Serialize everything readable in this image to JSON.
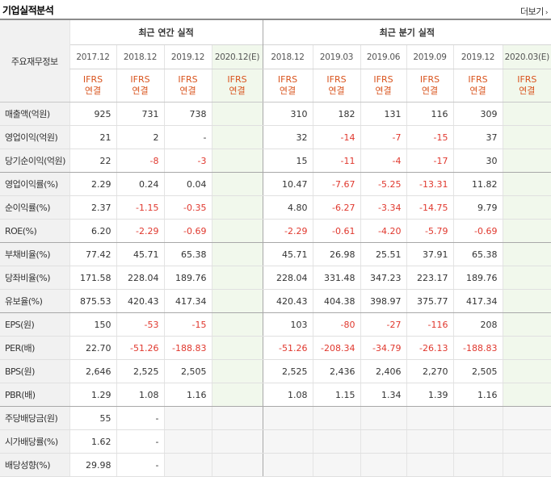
{
  "title": "기업실적분석",
  "more_label": "더보기",
  "header": {
    "label_col": "주요재무정보",
    "annual_group": "최근 연간 실적",
    "quarter_group": "최근 분기 실적",
    "annual_periods": [
      "2017.12",
      "2018.12",
      "2019.12",
      "2020.12(E)"
    ],
    "quarter_periods": [
      "2018.12",
      "2019.03",
      "2019.06",
      "2019.09",
      "2019.12",
      "2020.03(E)"
    ],
    "ifrs_line1": "IFRS",
    "ifrs_line2": "연결"
  },
  "rows": [
    {
      "label": "매출액(억원)",
      "annual": [
        "925",
        "731",
        "738",
        ""
      ],
      "quarter": [
        "310",
        "182",
        "131",
        "116",
        "309",
        ""
      ]
    },
    {
      "label": "영업이익(억원)",
      "annual": [
        "21",
        "2",
        "-",
        ""
      ],
      "quarter": [
        "32",
        "-14",
        "-7",
        "-15",
        "37",
        ""
      ]
    },
    {
      "label": "당기순이익(억원)",
      "annual": [
        "22",
        "-8",
        "-3",
        ""
      ],
      "quarter": [
        "15",
        "-11",
        "-4",
        "-17",
        "30",
        ""
      ]
    },
    {
      "label": "영업이익률(%)",
      "annual": [
        "2.29",
        "0.24",
        "0.04",
        ""
      ],
      "quarter": [
        "10.47",
        "-7.67",
        "-5.25",
        "-13.31",
        "11.82",
        ""
      ]
    },
    {
      "label": "순이익률(%)",
      "annual": [
        "2.37",
        "-1.15",
        "-0.35",
        ""
      ],
      "quarter": [
        "4.80",
        "-6.27",
        "-3.34",
        "-14.75",
        "9.79",
        ""
      ]
    },
    {
      "label": "ROE(%)",
      "annual": [
        "6.20",
        "-2.29",
        "-0.69",
        ""
      ],
      "quarter": [
        "-2.29",
        "-0.61",
        "-4.20",
        "-5.79",
        "-0.69",
        ""
      ]
    },
    {
      "label": "부채비율(%)",
      "annual": [
        "77.42",
        "45.71",
        "65.38",
        ""
      ],
      "quarter": [
        "45.71",
        "26.98",
        "25.51",
        "37.91",
        "65.38",
        ""
      ]
    },
    {
      "label": "당좌비율(%)",
      "annual": [
        "171.58",
        "228.04",
        "189.76",
        ""
      ],
      "quarter": [
        "228.04",
        "331.48",
        "347.23",
        "223.17",
        "189.76",
        ""
      ]
    },
    {
      "label": "유보율(%)",
      "annual": [
        "875.53",
        "420.43",
        "417.34",
        ""
      ],
      "quarter": [
        "420.43",
        "404.38",
        "398.97",
        "375.77",
        "417.34",
        ""
      ]
    },
    {
      "label": "EPS(원)",
      "annual": [
        "150",
        "-53",
        "-15",
        ""
      ],
      "quarter": [
        "103",
        "-80",
        "-27",
        "-116",
        "208",
        ""
      ]
    },
    {
      "label": "PER(배)",
      "annual": [
        "22.70",
        "-51.26",
        "-188.83",
        ""
      ],
      "quarter": [
        "-51.26",
        "-208.34",
        "-34.79",
        "-26.13",
        "-188.83",
        ""
      ]
    },
    {
      "label": "BPS(원)",
      "annual": [
        "2,646",
        "2,525",
        "2,505",
        ""
      ],
      "quarter": [
        "2,525",
        "2,436",
        "2,406",
        "2,270",
        "2,505",
        ""
      ]
    },
    {
      "label": "PBR(배)",
      "annual": [
        "1.29",
        "1.08",
        "1.16",
        ""
      ],
      "quarter": [
        "1.08",
        "1.15",
        "1.34",
        "1.39",
        "1.16",
        ""
      ]
    },
    {
      "label": "주당배당금(원)",
      "annual": [
        "55",
        "-",
        "",
        ""
      ],
      "quarter": [
        "",
        "",
        "",
        "",
        "",
        ""
      ],
      "empty": true
    },
    {
      "label": "시가배당률(%)",
      "annual": [
        "1.62",
        "-",
        "",
        ""
      ],
      "quarter": [
        "",
        "",
        "",
        "",
        "",
        ""
      ],
      "empty": true
    },
    {
      "label": "배당성향(%)",
      "annual": [
        "29.98",
        "-",
        "",
        ""
      ],
      "quarter": [
        "",
        "",
        "",
        "",
        "",
        ""
      ],
      "empty": true
    }
  ],
  "group_breaks": [
    2,
    5,
    8,
    12
  ],
  "colors": {
    "negative": "#e0382e",
    "ifrs": "#d9541e",
    "estimate_bg": "#f1f8ec",
    "label_bg": "#f1f1f1"
  }
}
